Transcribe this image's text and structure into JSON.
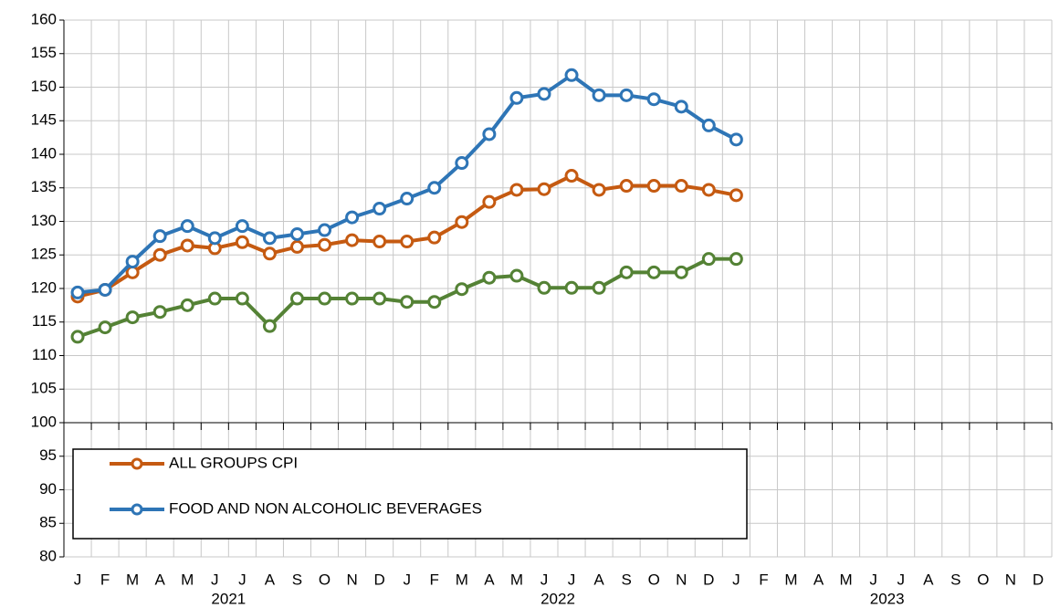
{
  "chart_data": {
    "type": "line",
    "categories": [
      "J",
      "F",
      "M",
      "A",
      "M",
      "J",
      "J",
      "A",
      "S",
      "O",
      "N",
      "D",
      "J",
      "F",
      "M",
      "A",
      "M",
      "J",
      "J",
      "A",
      "S",
      "O",
      "N",
      "D",
      "J",
      "F",
      "M",
      "A",
      "M",
      "J",
      "J",
      "A",
      "S",
      "O",
      "N",
      "D"
    ],
    "x_groups": [
      "2021",
      "2022",
      "2023"
    ],
    "series": [
      {
        "name": "ALL GROUPS CPI",
        "color": "#c55a11",
        "values": [
          118.8,
          119.8,
          122.4,
          125.0,
          126.4,
          126.0,
          126.9,
          125.2,
          126.2,
          126.5,
          127.2,
          127.0,
          127.0,
          127.6,
          129.9,
          132.9,
          134.7,
          134.8,
          136.8,
          134.7,
          135.3,
          135.3,
          135.3,
          134.7,
          133.9,
          null,
          null,
          null,
          null,
          null,
          null,
          null,
          null,
          null,
          null,
          null
        ]
      },
      {
        "name": "FOOD AND NON ALCOHOLIC BEVERAGES",
        "color": "#2e75b6",
        "values": [
          119.4,
          119.8,
          124.0,
          127.8,
          129.3,
          127.5,
          129.3,
          127.5,
          128.1,
          128.7,
          130.6,
          131.9,
          133.4,
          135.0,
          138.7,
          143.0,
          148.4,
          149.0,
          151.8,
          148.8,
          148.8,
          148.2,
          147.1,
          144.3,
          142.2,
          null,
          null,
          null,
          null,
          null,
          null,
          null,
          null,
          null,
          null,
          null
        ]
      },
      {
        "color": "#548235",
        "values": [
          112.8,
          114.2,
          115.7,
          116.5,
          117.5,
          118.5,
          118.5,
          114.4,
          118.5,
          118.5,
          118.5,
          118.5,
          118.0,
          118.0,
          119.9,
          121.6,
          121.9,
          120.1,
          120.1,
          120.1,
          122.4,
          122.4,
          122.4,
          124.4,
          124.4,
          null,
          null,
          null,
          null,
          null,
          null,
          null,
          null,
          null,
          null,
          null
        ]
      }
    ],
    "ylim": [
      80,
      160
    ],
    "yticks": [
      80,
      85,
      90,
      95,
      100,
      105,
      110,
      115,
      120,
      125,
      130,
      135,
      140,
      145,
      150,
      155,
      160
    ],
    "xaxis_at": 100,
    "grid": true,
    "legend": "lower-left"
  }
}
